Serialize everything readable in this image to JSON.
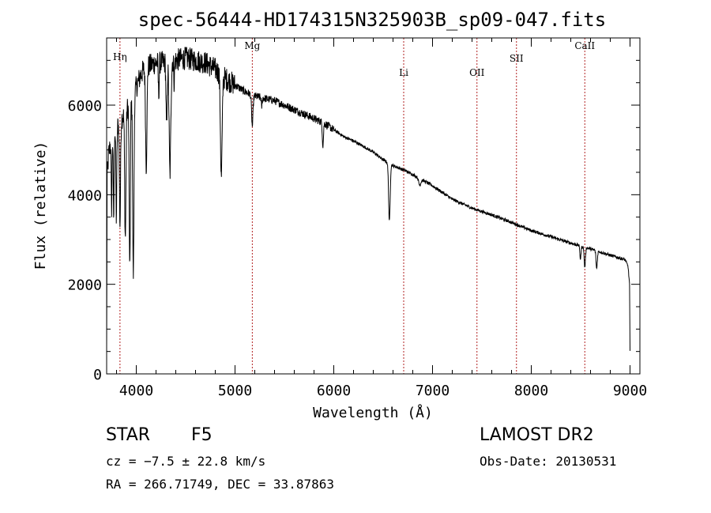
{
  "chart_data": {
    "type": "line",
    "title": "spec-56444-HD174315N325903B_sp09-047.fits",
    "xlabel": "Wavelength (Å)",
    "ylabel": "Flux (relative)",
    "xlim": [
      3700,
      9100
    ],
    "ylim": [
      0,
      7500
    ],
    "xticks": [
      4000,
      5000,
      6000,
      7000,
      8000,
      9000
    ],
    "yticks": [
      0,
      2000,
      4000,
      6000
    ],
    "xtick_labels": [
      "4000",
      "5000",
      "6000",
      "7000",
      "8000",
      "9000"
    ],
    "ytick_labels": [
      "0",
      "2000",
      "4000",
      "6000"
    ],
    "lines": [
      {
        "label": "Hη",
        "x": 3835
      },
      {
        "label": "Mg",
        "x": 5175
      },
      {
        "label": "Li",
        "x": 6708
      },
      {
        "label": "OII",
        "x": 7450
      },
      {
        "label": "SII",
        "x": 7850
      },
      {
        "label": "CaII",
        "x": 8542
      }
    ],
    "continuum": [
      [
        3700,
        500
      ],
      [
        3705,
        4400
      ],
      [
        3720,
        4900
      ],
      [
        3750,
        5300
      ],
      [
        3800,
        5500
      ],
      [
        3850,
        5700
      ],
      [
        3900,
        5900
      ],
      [
        3950,
        6100
      ],
      [
        4000,
        6400
      ],
      [
        4050,
        6700
      ],
      [
        4100,
        6850
      ],
      [
        4200,
        6950
      ],
      [
        4300,
        6950
      ],
      [
        4400,
        7000
      ],
      [
        4500,
        7050
      ],
      [
        4600,
        7000
      ],
      [
        4700,
        6950
      ],
      [
        4800,
        6800
      ],
      [
        4900,
        6600
      ],
      [
        5000,
        6450
      ],
      [
        5100,
        6300
      ],
      [
        5200,
        6200
      ],
      [
        5300,
        6150
      ],
      [
        5400,
        6100
      ],
      [
        5500,
        6000
      ],
      [
        5600,
        5900
      ],
      [
        5700,
        5800
      ],
      [
        5800,
        5700
      ],
      [
        5900,
        5600
      ],
      [
        6000,
        5450
      ],
      [
        6100,
        5300
      ],
      [
        6200,
        5200
      ],
      [
        6300,
        5080
      ],
      [
        6400,
        4950
      ],
      [
        6500,
        4780
      ],
      [
        6600,
        4650
      ],
      [
        6700,
        4560
      ],
      [
        6800,
        4450
      ],
      [
        7000,
        4200
      ],
      [
        7200,
        3900
      ],
      [
        7400,
        3700
      ],
      [
        7600,
        3550
      ],
      [
        7800,
        3380
      ],
      [
        8000,
        3200
      ],
      [
        8200,
        3060
      ],
      [
        8400,
        2920
      ],
      [
        8600,
        2790
      ],
      [
        8800,
        2650
      ],
      [
        8950,
        2550
      ],
      [
        8980,
        2400
      ],
      [
        8995,
        2000
      ],
      [
        9000,
        500
      ]
    ],
    "absorption": [
      {
        "x": 3750,
        "depth": 1600,
        "w": 6
      },
      {
        "x": 3771,
        "depth": 1900,
        "w": 6
      },
      {
        "x": 3798,
        "depth": 2000,
        "w": 7
      },
      {
        "x": 3835,
        "depth": 2300,
        "w": 8
      },
      {
        "x": 3889,
        "depth": 2800,
        "w": 9
      },
      {
        "x": 3934,
        "depth": 3800,
        "w": 8
      },
      {
        "x": 3970,
        "depth": 4000,
        "w": 9
      },
      {
        "x": 4101,
        "depth": 2200,
        "w": 10
      },
      {
        "x": 4227,
        "depth": 700,
        "w": 6
      },
      {
        "x": 4307,
        "depth": 1500,
        "w": 8
      },
      {
        "x": 4341,
        "depth": 2500,
        "w": 12
      },
      {
        "x": 4384,
        "depth": 500,
        "w": 5
      },
      {
        "x": 4861,
        "depth": 2300,
        "w": 12
      },
      {
        "x": 5175,
        "depth": 700,
        "w": 10
      },
      {
        "x": 5270,
        "depth": 200,
        "w": 6
      },
      {
        "x": 5890,
        "depth": 500,
        "w": 8
      },
      {
        "x": 6563,
        "depth": 1300,
        "w": 11
      },
      {
        "x": 6870,
        "depth": 150,
        "w": 15
      },
      {
        "x": 8498,
        "depth": 300,
        "w": 8
      },
      {
        "x": 8542,
        "depth": 450,
        "w": 9
      },
      {
        "x": 8662,
        "depth": 400,
        "w": 9
      }
    ]
  },
  "info": {
    "class_label": "STAR",
    "subclass": "F5",
    "survey": "LAMOST DR2",
    "cz": "cz = −7.5 ± 22.8 km/s",
    "obs_date": "Obs-Date: 20130531",
    "coords": "RA = 266.71749, DEC =  33.87863"
  }
}
